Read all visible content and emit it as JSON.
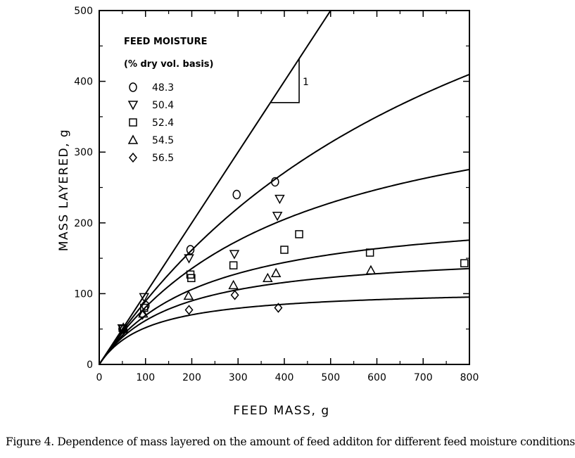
{
  "chart_data": {
    "type": "scatter",
    "xlabel": "FEED MASS, g",
    "ylabel": "MASS LAYERED, g",
    "xlim": [
      0,
      800
    ],
    "ylim": [
      0,
      500
    ],
    "x_ticks": [
      0,
      100,
      200,
      300,
      400,
      500,
      600,
      700,
      800
    ],
    "y_ticks": [
      0,
      100,
      200,
      300,
      400,
      500
    ],
    "grid": false,
    "legend_title_line1": "FEED MOISTURE",
    "legend_title_line2": "(% dry vol. basis)",
    "legend_position": "top-left",
    "slope_label": "1",
    "series": [
      {
        "name": "48.3",
        "marker": "circle",
        "points": [
          [
            50,
            50
          ],
          [
            100,
            83
          ],
          [
            197,
            162
          ],
          [
            297,
            240
          ],
          [
            380,
            258
          ]
        ],
        "fit_asymptote": 840
      },
      {
        "name": "50.4",
        "marker": "triangle-down",
        "points": [
          [
            50,
            51
          ],
          [
            97,
            95
          ],
          [
            194,
            150
          ],
          [
            292,
            156
          ],
          [
            385,
            210
          ],
          [
            390,
            234
          ]
        ],
        "fit_asymptote": 420
      },
      {
        "name": "52.4",
        "marker": "square",
        "points": [
          [
            52,
            50
          ],
          [
            97,
            80
          ],
          [
            197,
            127
          ],
          [
            199,
            122
          ],
          [
            290,
            140
          ],
          [
            400,
            162
          ],
          [
            432,
            184
          ],
          [
            585,
            158
          ],
          [
            789,
            143
          ]
        ],
        "fit_asymptote": 225
      },
      {
        "name": "54.5",
        "marker": "triangle-up",
        "points": [
          [
            52,
            52
          ],
          [
            95,
            72
          ],
          [
            193,
            97
          ],
          [
            290,
            112
          ],
          [
            364,
            122
          ],
          [
            382,
            129
          ],
          [
            587,
            133
          ]
        ],
        "fit_asymptote": 163
      },
      {
        "name": "56.5",
        "marker": "diamond",
        "points": [
          [
            52,
            50
          ],
          [
            93,
            70
          ],
          [
            194,
            77
          ],
          [
            293,
            98
          ],
          [
            387,
            80
          ]
        ],
        "fit_asymptote": 108
      }
    ],
    "reference_line": {
      "label": "1",
      "slope": 1
    }
  },
  "caption": "Figure 4.  Dependence of mass layered on the amount of feed additon for different feed moisture conditions"
}
